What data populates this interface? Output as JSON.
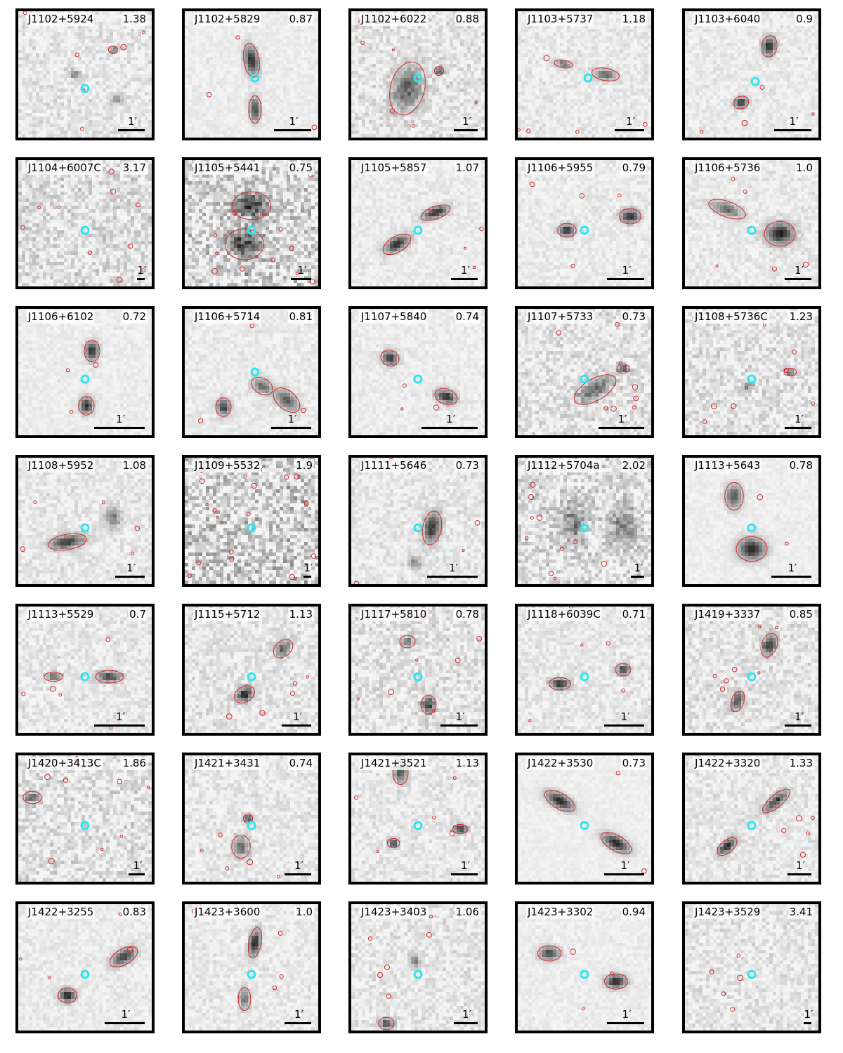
{
  "scale_label": "1′",
  "colors": {
    "contour": "#d42a2a",
    "marker": "#2ee6ef",
    "frame": "#000000"
  },
  "panels": [
    {
      "name": "J1102+5924",
      "z": "1.38",
      "noise": 0.35,
      "bar": 0.2
    },
    {
      "name": "J1102+5829",
      "z": "0.87",
      "noise": 0.15,
      "bar": 0.28
    },
    {
      "name": "J1102+6022",
      "z": "0.88",
      "noise": 0.4,
      "bar": 0.18
    },
    {
      "name": "J1103+5737",
      "z": "1.18",
      "noise": 0.25,
      "bar": 0.22
    },
    {
      "name": "J1103+6040",
      "z": "0.9",
      "noise": 0.22,
      "bar": 0.28
    },
    {
      "name": "J1104+6007C",
      "z": "3.17",
      "noise": 0.55,
      "bar": 0.06
    },
    {
      "name": "J1105+5441",
      "z": "0.75",
      "noise": 0.8,
      "bar": 0.15
    },
    {
      "name": "J1105+5857",
      "z": "1.07",
      "noise": 0.2,
      "bar": 0.2
    },
    {
      "name": "J1106+5955",
      "z": "0.79",
      "noise": 0.22,
      "bar": 0.28
    },
    {
      "name": "J1106+5736",
      "z": "1.0",
      "noise": 0.25,
      "bar": 0.2
    },
    {
      "name": "J1106+6102",
      "z": "0.72",
      "noise": 0.15,
      "bar": 0.38
    },
    {
      "name": "J1106+5714",
      "z": "0.81",
      "noise": 0.2,
      "bar": 0.3
    },
    {
      "name": "J1107+5840",
      "z": "0.74",
      "noise": 0.18,
      "bar": 0.42
    },
    {
      "name": "J1107+5733",
      "z": "0.73",
      "noise": 0.45,
      "bar": 0.34
    },
    {
      "name": "J1108+5736C",
      "z": "1.23",
      "noise": 0.45,
      "bar": 0.2
    },
    {
      "name": "J1108+5952",
      "z": "1.08",
      "noise": 0.3,
      "bar": 0.22
    },
    {
      "name": "J1109+5532",
      "z": "1.9",
      "noise": 0.95,
      "bar": 0.06
    },
    {
      "name": "J1111+5646",
      "z": "0.73",
      "noise": 0.3,
      "bar": 0.38
    },
    {
      "name": "J1112+5704a",
      "z": "2.02",
      "noise": 0.6,
      "bar": 0.1
    },
    {
      "name": "J1113+5643",
      "z": "0.78",
      "noise": 0.12,
      "bar": 0.3
    },
    {
      "name": "J1113+5529",
      "z": "0.7",
      "noise": 0.3,
      "bar": 0.38
    },
    {
      "name": "J1115+5712",
      "z": "1.13",
      "noise": 0.35,
      "bar": 0.22
    },
    {
      "name": "J1117+5810",
      "z": "0.78",
      "noise": 0.45,
      "bar": 0.28
    },
    {
      "name": "J1118+6039C",
      "z": "0.71",
      "noise": 0.3,
      "bar": 0.3
    },
    {
      "name": "J1419+3337",
      "z": "0.85",
      "noise": 0.4,
      "bar": 0.2
    },
    {
      "name": "J1420+3413C",
      "z": "1.86",
      "noise": 0.5,
      "bar": 0.12
    },
    {
      "name": "J1421+3431",
      "z": "0.74",
      "noise": 0.3,
      "bar": 0.2
    },
    {
      "name": "J1421+3521",
      "z": "1.13",
      "noise": 0.3,
      "bar": 0.2
    },
    {
      "name": "J1422+3530",
      "z": "0.73",
      "noise": 0.1,
      "bar": 0.3
    },
    {
      "name": "J1422+3320",
      "z": "1.33",
      "noise": 0.3,
      "bar": 0.18
    },
    {
      "name": "J1422+3255",
      "z": "0.83",
      "noise": 0.2,
      "bar": 0.3
    },
    {
      "name": "J1423+3600",
      "z": "1.0",
      "noise": 0.25,
      "bar": 0.2
    },
    {
      "name": "J1423+3403",
      "z": "1.06",
      "noise": 0.35,
      "bar": 0.18
    },
    {
      "name": "J1423+3302",
      "z": "0.94",
      "noise": 0.15,
      "bar": 0.28
    },
    {
      "name": "J1423+3529",
      "z": "3.41",
      "noise": 0.35,
      "bar": 0.06
    }
  ]
}
